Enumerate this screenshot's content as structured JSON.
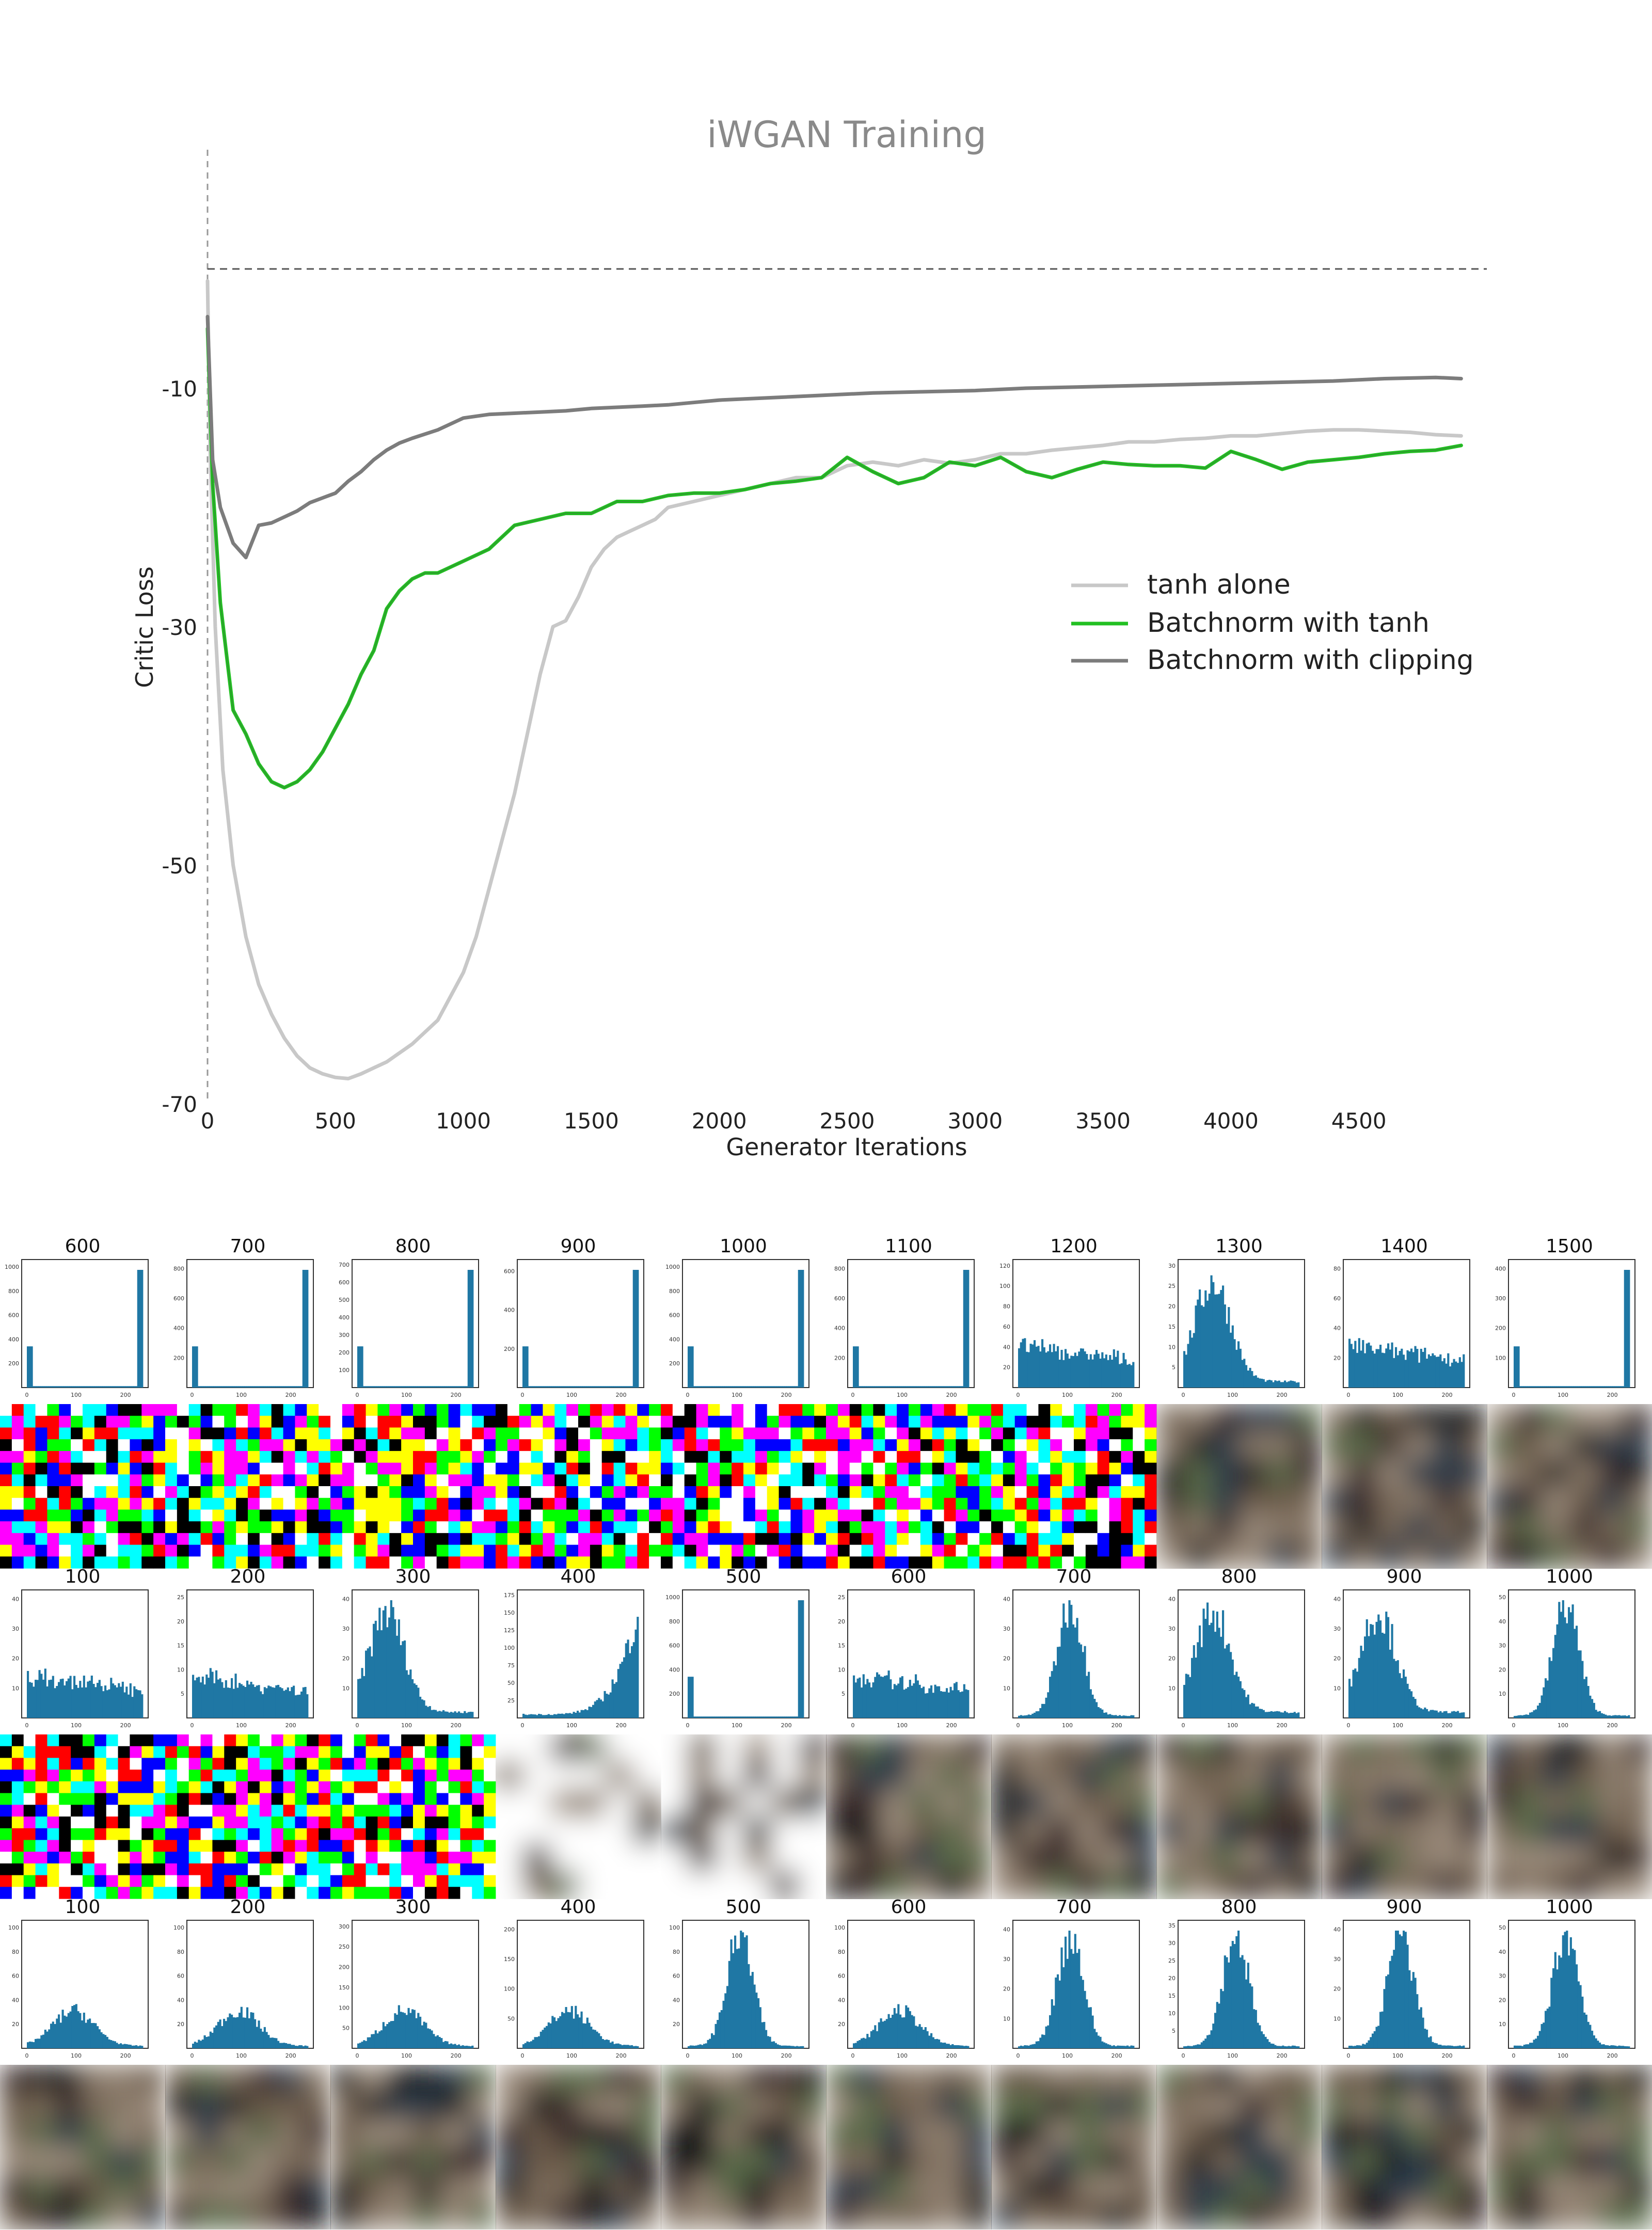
{
  "chart_data": [
    {
      "type": "line",
      "title": "iWGAN Training",
      "xlabel": "Generator Iterations",
      "ylabel": "Critic Loss",
      "xlim": [
        0,
        5000
      ],
      "ylim": [
        -70,
        10
      ],
      "xticks": [
        0,
        500,
        1000,
        1500,
        2000,
        2500,
        3000,
        3500,
        4000,
        4500
      ],
      "yticks": [
        -70,
        -50,
        -30,
        -10
      ],
      "reference_line": {
        "y": 0,
        "style": "dashed"
      },
      "grid": false,
      "legend_position": "center-right",
      "series": [
        {
          "name": "tanh alone",
          "color": "#c8c8c8",
          "x": [
            0,
            10,
            30,
            60,
            100,
            150,
            200,
            250,
            300,
            350,
            400,
            450,
            500,
            550,
            600,
            650,
            700,
            800,
            900,
            1000,
            1050,
            1100,
            1150,
            1200,
            1250,
            1300,
            1350,
            1400,
            1450,
            1500,
            1550,
            1600,
            1650,
            1700,
            1750,
            1800,
            1900,
            2000,
            2100,
            2200,
            2300,
            2400,
            2500,
            2600,
            2700,
            2800,
            2900,
            3000,
            3100,
            3200,
            3300,
            3400,
            3500,
            3600,
            3700,
            3800,
            3900,
            4000,
            4100,
            4200,
            4300,
            4400,
            4500,
            4600,
            4700,
            4800,
            4900
          ],
          "values": [
            -1,
            -15,
            -30,
            -42,
            -50,
            -56,
            -60,
            -62.5,
            -64.5,
            -66,
            -67,
            -67.5,
            -67.8,
            -67.9,
            -67.5,
            -67,
            -66.5,
            -65,
            -63,
            -59,
            -56,
            -52,
            -48,
            -44,
            -39,
            -34,
            -30,
            -29.5,
            -27.5,
            -25,
            -23.5,
            -22.5,
            -22,
            -21.5,
            -21,
            -20,
            -19.5,
            -19,
            -18.5,
            -18,
            -17.5,
            -17.5,
            -16.5,
            -16.2,
            -16.5,
            -16,
            -16.3,
            -16,
            -15.5,
            -15.5,
            -15.2,
            -15,
            -14.8,
            -14.5,
            -14.5,
            -14.3,
            -14.2,
            -14,
            -14,
            -13.8,
            -13.6,
            -13.5,
            -13.5,
            -13.6,
            -13.7,
            -13.9,
            -14
          ]
        },
        {
          "name": "Batchnorm with tanh",
          "color": "#22c022",
          "x": [
            0,
            20,
            50,
            100,
            150,
            200,
            250,
            300,
            350,
            400,
            450,
            500,
            550,
            600,
            650,
            700,
            750,
            800,
            850,
            900,
            950,
            1000,
            1100,
            1200,
            1300,
            1400,
            1500,
            1600,
            1700,
            1800,
            1900,
            2000,
            2100,
            2200,
            2300,
            2400,
            2500,
            2600,
            2700,
            2800,
            2900,
            3000,
            3100,
            3200,
            3300,
            3400,
            3500,
            3600,
            3700,
            3800,
            3900,
            4000,
            4100,
            4200,
            4300,
            4400,
            4500,
            4600,
            4700,
            4800,
            4900
          ],
          "values": [
            -5,
            -18,
            -28,
            -37,
            -39,
            -41.5,
            -43,
            -43.5,
            -43,
            -42,
            -40.5,
            -38.5,
            -36.5,
            -34,
            -32,
            -28.5,
            -27,
            -26,
            -25.5,
            -25.5,
            -25,
            -24.5,
            -23.5,
            -21.5,
            -21,
            -20.5,
            -20.5,
            -19.5,
            -19.5,
            -19,
            -18.8,
            -18.8,
            -18.5,
            -18,
            -17.8,
            -17.5,
            -15.8,
            -17,
            -18,
            -17.5,
            -16.2,
            -16.5,
            -15.8,
            -17,
            -17.5,
            -16.8,
            -16.2,
            -16.4,
            -16.5,
            -16.5,
            -16.7,
            -15.3,
            -16,
            -16.8,
            -16.2,
            -16,
            -15.8,
            -15.5,
            -15.3,
            -15.2,
            -14.8
          ]
        },
        {
          "name": "Batchnorm with clipping",
          "color": "#7c7c7c",
          "x": [
            0,
            20,
            50,
            100,
            150,
            200,
            250,
            300,
            350,
            400,
            450,
            500,
            550,
            600,
            650,
            700,
            750,
            800,
            900,
            1000,
            1100,
            1200,
            1300,
            1400,
            1500,
            1600,
            1700,
            1800,
            1900,
            2000,
            2200,
            2400,
            2600,
            2800,
            3000,
            3200,
            3400,
            3600,
            3800,
            4000,
            4200,
            4400,
            4600,
            4800,
            4900
          ],
          "values": [
            -4,
            -16,
            -20,
            -23,
            -24.2,
            -21.5,
            -21.3,
            -20.8,
            -20.3,
            -19.6,
            -19.2,
            -18.8,
            -17.8,
            -17,
            -16,
            -15.2,
            -14.6,
            -14.2,
            -13.5,
            -12.5,
            -12.2,
            -12.1,
            -12,
            -11.9,
            -11.7,
            -11.6,
            -11.5,
            -11.4,
            -11.2,
            -11,
            -10.8,
            -10.6,
            -10.4,
            -10.3,
            -10.2,
            -10,
            -9.9,
            -9.8,
            -9.7,
            -9.6,
            -9.5,
            -9.4,
            -9.2,
            -9.1,
            -9.2
          ]
        }
      ]
    },
    {
      "type": "bar",
      "panel": "histogram-grid",
      "rows": [
        {
          "titles": [
            "600",
            "700",
            "800",
            "900",
            "1000",
            "1100",
            "1200",
            "1300",
            "1400",
            "1500"
          ],
          "shapes": [
            "spikes",
            "spikes",
            "spikes",
            "spikes",
            "spikes",
            "spikes",
            "flat",
            "skewed",
            "flat",
            "spikes"
          ],
          "ymax_labels": [
            [
              "200",
              "400",
              "600",
              "800",
              "1000"
            ],
            [
              "200",
              "400",
              "600",
              "800"
            ],
            [
              "100",
              "200",
              "300",
              "400",
              "500",
              "600",
              "700"
            ],
            [
              "200",
              "400",
              "600"
            ],
            [
              "200",
              "400",
              "600",
              "800",
              "1000"
            ],
            [
              "200",
              "400",
              "600",
              "800"
            ],
            [
              "20",
              "40",
              "60",
              "80",
              "100",
              "120"
            ],
            [
              "5",
              "10",
              "15",
              "20",
              "25",
              "30"
            ],
            [
              "20",
              "40",
              "60",
              "80"
            ],
            [
              "100",
              "200",
              "300",
              "400"
            ]
          ]
        },
        {
          "titles": [
            "100",
            "200",
            "300",
            "400",
            "500",
            "600",
            "700",
            "800",
            "900",
            "1000"
          ],
          "shapes": [
            "flat",
            "flat",
            "skewed",
            "rising",
            "spikes",
            "flat",
            "peak",
            "skewed",
            "skewed",
            "peak"
          ],
          "ymax_labels": [
            [
              "10",
              "20",
              "30",
              "40"
            ],
            [
              "5",
              "10",
              "15",
              "20",
              "25"
            ],
            [
              "10",
              "20",
              "30",
              "40"
            ],
            [
              "25",
              "50",
              "75",
              "100",
              "125",
              "150",
              "175"
            ],
            [
              "200",
              "400",
              "600",
              "800",
              "1000"
            ],
            [
              "5",
              "10",
              "15",
              "20",
              "25"
            ],
            [
              "10",
              "20",
              "30",
              "40"
            ],
            [
              "10",
              "20",
              "30",
              "40"
            ],
            [
              "10",
              "20",
              "30",
              "40"
            ],
            [
              "10",
              "20",
              "30",
              "40",
              "50"
            ]
          ]
        },
        {
          "titles": [
            "100",
            "200",
            "300",
            "400",
            "500",
            "600",
            "700",
            "800",
            "900",
            "1000"
          ],
          "shapes": [
            "low",
            "low",
            "low",
            "low",
            "peak",
            "low",
            "peak",
            "peak",
            "peak",
            "peak"
          ],
          "ymax_labels": [
            [
              "20",
              "40",
              "60",
              "80",
              "100"
            ],
            [
              "20",
              "40",
              "60",
              "80",
              "100"
            ],
            [
              "50",
              "100",
              "150",
              "200",
              "250",
              "300"
            ],
            [
              "50",
              "100",
              "150",
              "200"
            ],
            [
              "20",
              "40",
              "60",
              "80",
              "100"
            ],
            [
              "20",
              "40",
              "60",
              "80",
              "100"
            ],
            [
              "10",
              "20",
              "30",
              "40"
            ],
            [
              "5",
              "10",
              "15",
              "20",
              "25",
              "30",
              "35"
            ],
            [
              "10",
              "20",
              "30",
              "40"
            ],
            [
              "10",
              "20",
              "30",
              "40",
              "50"
            ]
          ]
        }
      ],
      "xtick_labels": [
        "0",
        "100",
        "200"
      ]
    }
  ]
}
